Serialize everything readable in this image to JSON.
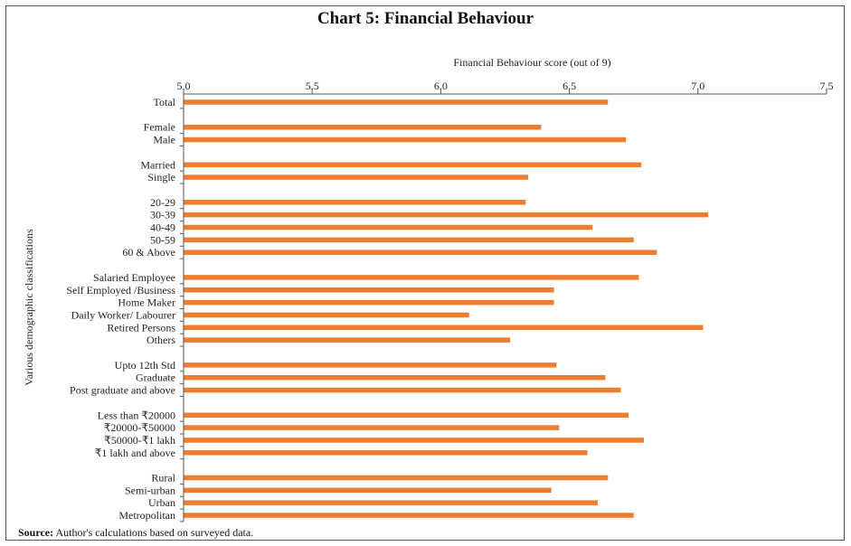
{
  "chart_data": {
    "type": "bar",
    "orientation": "horizontal",
    "title": "Chart 5: Financial Behaviour",
    "xlabel": "Financial Behaviour score (out of 9)",
    "ylabel": "Various demographic classifications",
    "xlim": [
      5.0,
      7.5
    ],
    "xticks": [
      "5.0",
      "5.5",
      "6.0",
      "6.5",
      "7.0",
      "7.5"
    ],
    "xtick_values": [
      5.0,
      5.5,
      6.0,
      6.5,
      7.0,
      7.5
    ],
    "bar_color": "#ed7d31",
    "groups": [
      {
        "categories": [
          "Total"
        ],
        "values": [
          6.65
        ]
      },
      {
        "categories": [
          "Female",
          "Male"
        ],
        "values": [
          6.39,
          6.72
        ]
      },
      {
        "categories": [
          "Married",
          "Single"
        ],
        "values": [
          6.78,
          6.34
        ]
      },
      {
        "categories": [
          "20-29",
          "30-39",
          "40-49",
          "50-59",
          "60 & Above"
        ],
        "values": [
          6.33,
          7.04,
          6.59,
          6.75,
          6.84
        ]
      },
      {
        "categories": [
          "Salaried Employee",
          "Self Employed /Business",
          "Home Maker",
          "Daily Worker/ Labourer",
          "Retired Persons",
          "Others"
        ],
        "values": [
          6.77,
          6.44,
          6.44,
          6.11,
          7.02,
          6.27
        ]
      },
      {
        "categories": [
          "Upto 12th Std",
          "Graduate",
          "Post graduate and above"
        ],
        "values": [
          6.45,
          6.64,
          6.7
        ]
      },
      {
        "categories": [
          "Less than ₹20000",
          "₹20000-₹50000",
          "₹50000-₹1 lakh",
          "₹1 lakh and above"
        ],
        "values": [
          6.73,
          6.46,
          6.79,
          6.57
        ]
      },
      {
        "categories": [
          "Rural",
          "Semi-urban",
          "Urban",
          "Metropolitan"
        ],
        "values": [
          6.65,
          6.43,
          6.61,
          6.75
        ]
      }
    ]
  },
  "source": {
    "label": "Source:",
    "text": " Author's calculations based on surveyed data."
  }
}
